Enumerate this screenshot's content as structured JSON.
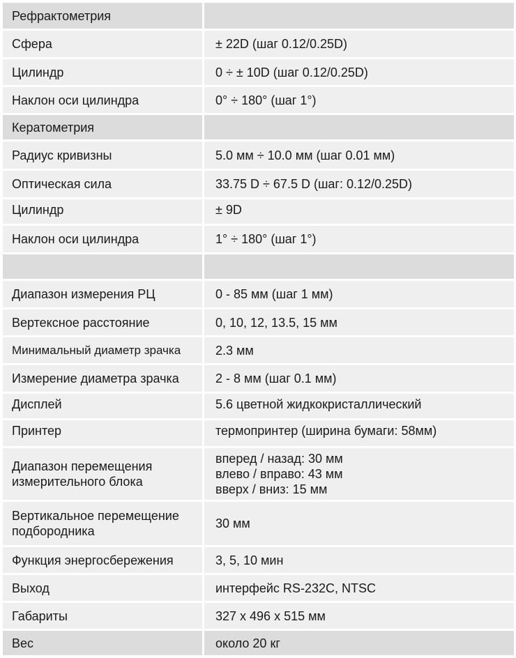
{
  "rows": [
    {
      "label": "Рефрактометрия",
      "value": "",
      "header": true,
      "h": 37
    },
    {
      "label": "Сфера",
      "value": "± 22D (шаг 0.12/0.25D)",
      "h": 38
    },
    {
      "label": "Цилиндр",
      "value": "0 ÷ ± 10D (шаг 0.12/0.25D)",
      "h": 37
    },
    {
      "label": "Наклон оси цилиндра",
      "value": "0° ÷ 180° (шаг 1°)",
      "h": 37
    },
    {
      "label": "Кератометрия",
      "value": "",
      "header": true,
      "h": 35
    },
    {
      "label": "Радиус кривизны",
      "value": "5.0 мм ÷ 10.0 мм (шаг 0.01 мм)",
      "h": 39
    },
    {
      "label": "Оптическая сила",
      "value": "33.75 D ÷ 67.5 D (шаг: 0.12/0.25D)",
      "h": 38
    },
    {
      "label": "Цилиндр",
      "value": "± 9D",
      "h": 35,
      "top": true
    },
    {
      "label": "Наклон оси цилиндра",
      "value": "1° ÷ 180° (шаг 1°)",
      "h": 38
    },
    {
      "label": "",
      "value": "",
      "header": true,
      "h": 35
    },
    {
      "label": "Диапазон измерения РЦ",
      "value": "0 - 85 мм (шаг 1 мм)",
      "h": 38
    },
    {
      "label": "Вертексное расстояние",
      "value": "0, 10, 12, 13.5, 15 мм",
      "h": 37
    },
    {
      "label": "Минимальный диаметр зрачка",
      "value": "2.3 мм",
      "h": 37,
      "small": true
    },
    {
      "label": "Измерение диаметра зрачка",
      "value": "2 - 8 мм (шаг 0.1 мм)",
      "h": 38
    },
    {
      "label": "Дисплей",
      "value": "5.6 цветной жидкокристаллический",
      "h": 35,
      "top": true
    },
    {
      "label": "Принтер",
      "value": "термопринтер (ширина бумаги: 58мм)",
      "h": 37,
      "top": true
    },
    {
      "label": "Диапазон перемещения\nизмерительного блока",
      "value": "вперед / назад: 30 мм\nвлево / вправо: 43 мм\nвверх / вниз: 15 мм",
      "h": 74
    },
    {
      "label": "Вертикальное перемещение\nподбородника",
      "value": "30 мм",
      "h": 62
    },
    {
      "label": "Функция энергосбережения",
      "value": "3, 5, 10 мин",
      "h": 37
    },
    {
      "label": "Выход",
      "value": "интерфейс RS-232C, NTSC",
      "h": 37
    },
    {
      "label": "Габариты",
      "value": "327 x 496 x 515 мм",
      "h": 37
    },
    {
      "label": "Вес",
      "value": "около 20 кг",
      "header": true,
      "h": 35
    }
  ],
  "colors": {
    "header": "#dcdcdc",
    "row": "#efefef"
  }
}
